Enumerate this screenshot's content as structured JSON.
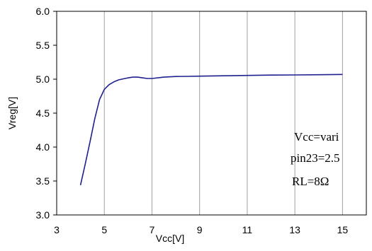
{
  "chart_data": {
    "type": "line",
    "title": "",
    "xlabel": "Vcc[V]",
    "ylabel": "Vreg[V]",
    "xlim": [
      3,
      16
    ],
    "ylim": [
      3.0,
      6.0
    ],
    "xticks": [
      3,
      5,
      7,
      9,
      11,
      13,
      15
    ],
    "yticks": [
      3.0,
      3.5,
      4.0,
      4.5,
      5.0,
      5.5,
      6.0
    ],
    "xtick_labels": [
      "3",
      "5",
      "7",
      "9",
      "11",
      "13",
      "15"
    ],
    "ytick_labels": [
      "3.0",
      "3.5",
      "4.0",
      "4.5",
      "5.0",
      "5.5",
      "6.0"
    ],
    "grid": {
      "vertical": true,
      "horizontal": false
    },
    "legend": "none",
    "line_color": "#1f1f8f",
    "series": [
      {
        "x": [
          4.0,
          4.2,
          4.4,
          4.6,
          4.8,
          5.0,
          5.2,
          5.4,
          5.6,
          5.8,
          6.0,
          6.2,
          6.4,
          6.6,
          6.8,
          7.0,
          7.5,
          8.0,
          8.5,
          9.0,
          10.0,
          11.0,
          12.0,
          13.0,
          14.0,
          15.0
        ],
        "y": [
          3.44,
          3.75,
          4.08,
          4.42,
          4.7,
          4.85,
          4.92,
          4.96,
          4.99,
          5.005,
          5.02,
          5.03,
          5.03,
          5.02,
          5.01,
          5.01,
          5.03,
          5.04,
          5.042,
          5.045,
          5.05,
          5.055,
          5.06,
          5.063,
          5.066,
          5.07
        ]
      }
    ],
    "annotations": [
      "Vcc=vari",
      "pin23=2.5",
      "RL=8Ω"
    ]
  }
}
